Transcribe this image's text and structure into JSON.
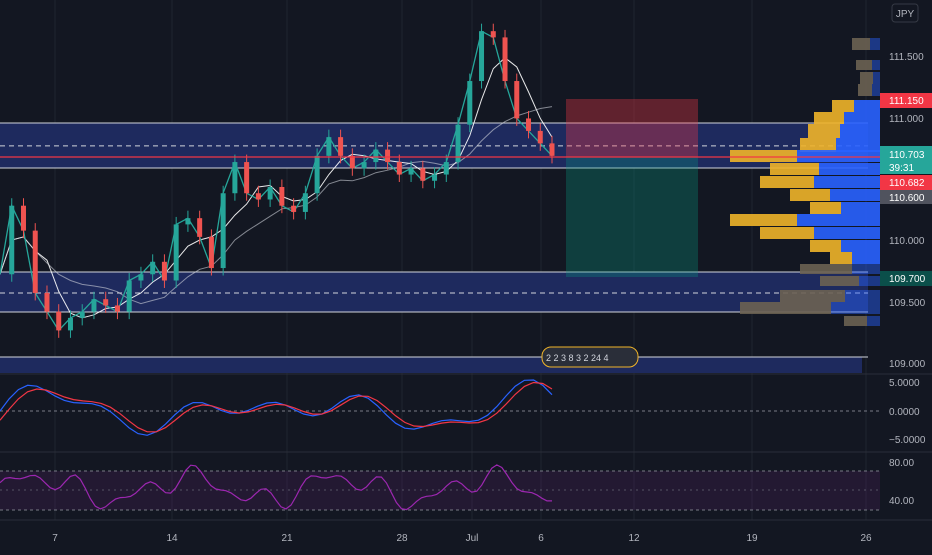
{
  "header": {
    "currency": "JPY"
  },
  "colors": {
    "background": "#131722",
    "zone": "#1e2a5e",
    "price_line": "#f23645",
    "up": "#26a69a",
    "down": "#ef5350",
    "long_stop": "#f23645",
    "long_target": "#089981",
    "vp_up": "#2962ff",
    "vp_down": "#f0b429",
    "vp_gray": "#6b6252",
    "oscillator_fast": "#2962ff",
    "oscillator_slow": "#f23645",
    "rsi": "#9c27b0"
  },
  "main_axis": {
    "tick_labels": [
      "111.500",
      "111.000",
      "110.000",
      "109.500",
      "109.000"
    ],
    "ylim": [
      108.95,
      111.95
    ]
  },
  "price_badges": {
    "last_price": "110.703",
    "countdown": "39:31",
    "level_top": "111.150",
    "level_red": "110.682",
    "level_gray": "110.600",
    "level_support": "109.700"
  },
  "x_axis": {
    "labels": [
      "7",
      "14",
      "21",
      "28",
      "Jul",
      "6",
      "12",
      "19",
      "26"
    ]
  },
  "event_markers": "2 2 3 8 3 2 24 4",
  "oscillator": {
    "tick_labels": [
      "5.0000",
      "0.0000",
      "−5.0000"
    ],
    "ylim": [
      -7,
      7
    ]
  },
  "rsi": {
    "tick_labels": [
      "80.00",
      "40.00"
    ],
    "ylim": [
      25,
      90
    ],
    "band": [
      30,
      70
    ]
  },
  "chart_data": {
    "type": "line",
    "title": "",
    "xlabel": "",
    "ylabel": "",
    "symbol_currency": "JPY",
    "series": [
      {
        "values": [
          109.75,
          110.3,
          110.1,
          109.6,
          109.45,
          109.3,
          109.4,
          109.45,
          109.55,
          109.5,
          109.45,
          109.7,
          109.75,
          109.85,
          109.7,
          110.15,
          110.2,
          110.05,
          109.8,
          110.4,
          110.65,
          110.4,
          110.35,
          110.45,
          110.3,
          110.25,
          110.4,
          110.7,
          110.85,
          110.7,
          110.6,
          110.65,
          110.75,
          110.65,
          110.55,
          110.6,
          110.5,
          110.55,
          110.65,
          110.95,
          111.3,
          111.7,
          111.65,
          111.3,
          111.0,
          110.9,
          110.8,
          110.7
        ]
      }
    ],
    "x_ticks": [
      "7",
      "14",
      "21",
      "28",
      "Jul",
      "6",
      "12",
      "19",
      "26"
    ],
    "ylim": [
      108.95,
      111.95
    ],
    "horizontal_levels": [
      111.15,
      110.682,
      110.6,
      109.7,
      109.0
    ],
    "support_zone": [
      109.45,
      109.7
    ],
    "resistance_zone": [
      110.6,
      110.93
    ],
    "dashed_levels": [
      110.78,
      109.6
    ],
    "long_position": {
      "entry": 110.71,
      "stop": 111.15,
      "target": 109.7
    },
    "indicators": {
      "oscillator": {
        "tick_labels": [
          5,
          0,
          -5
        ]
      },
      "rsi": {
        "tick_labels": [
          80,
          40
        ]
      }
    }
  }
}
